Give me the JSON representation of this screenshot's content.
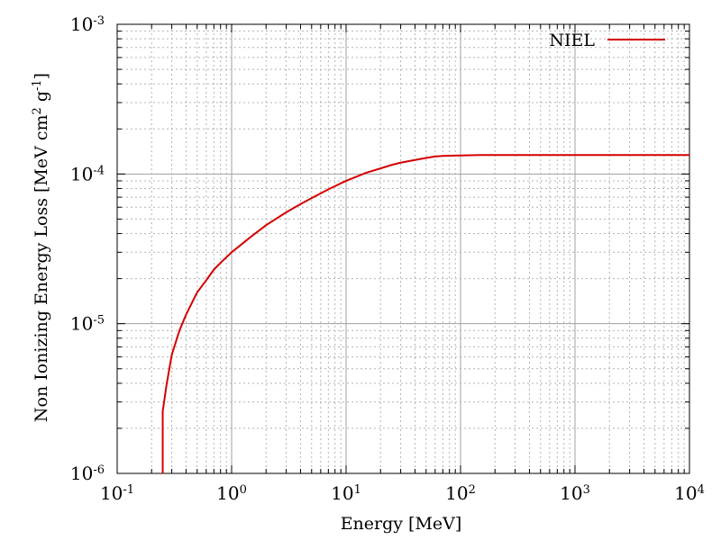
{
  "chart_data": {
    "type": "line",
    "title": "",
    "xlabel": "Energy [MeV]",
    "ylabel": {
      "part1": "Non Ionizing Energy Loss [MeV cm",
      "sup1": "2",
      "part2": " g",
      "sup2": "-1",
      "part3": "]"
    },
    "xscale": "log",
    "yscale": "log",
    "xlim": [
      0.1,
      10000
    ],
    "ylim": [
      1e-06,
      0.001
    ],
    "grid": true,
    "legend_position": "top-right",
    "x_tick_labels": [
      {
        "value": 0.1,
        "base": "10",
        "exp": "-1"
      },
      {
        "value": 1,
        "base": "10",
        "exp": "0"
      },
      {
        "value": 10,
        "base": "10",
        "exp": "1"
      },
      {
        "value": 100,
        "base": "10",
        "exp": "2"
      },
      {
        "value": 1000,
        "base": "10",
        "exp": "3"
      },
      {
        "value": 10000,
        "base": "10",
        "exp": "4"
      }
    ],
    "y_tick_labels": [
      {
        "value": 1e-06,
        "base": "10",
        "exp": "-6"
      },
      {
        "value": 1e-05,
        "base": "10",
        "exp": "-5"
      },
      {
        "value": 0.0001,
        "base": "10",
        "exp": "-4"
      },
      {
        "value": 0.001,
        "base": "10",
        "exp": "-3"
      }
    ],
    "series": [
      {
        "name": "NIEL",
        "color": "#d40000",
        "x": [
          0.25,
          0.25,
          0.27,
          0.3,
          0.35,
          0.4,
          0.5,
          0.6,
          0.7,
          0.8,
          1.0,
          1.5,
          2.0,
          3.0,
          4.0,
          5.0,
          7.0,
          10,
          15,
          20,
          25,
          30,
          40,
          50,
          60,
          70,
          100,
          150,
          200,
          500,
          1000,
          5000,
          10000
        ],
        "y": [
          1e-06,
          2.6e-06,
          3.9e-06,
          6.2e-06,
          9e-06,
          1.15e-05,
          1.62e-05,
          1.95e-05,
          2.3e-05,
          2.55e-05,
          3e-05,
          3.85e-05,
          4.55e-05,
          5.55e-05,
          6.3e-05,
          6.9e-05,
          7.9e-05,
          9e-05,
          0.000102,
          0.000109,
          0.000115,
          0.000119,
          0.000124,
          0.000128,
          0.000131,
          0.000132,
          0.000133,
          0.000134,
          0.000134,
          0.000134,
          0.000134,
          0.000134,
          0.000134
        ]
      }
    ]
  }
}
